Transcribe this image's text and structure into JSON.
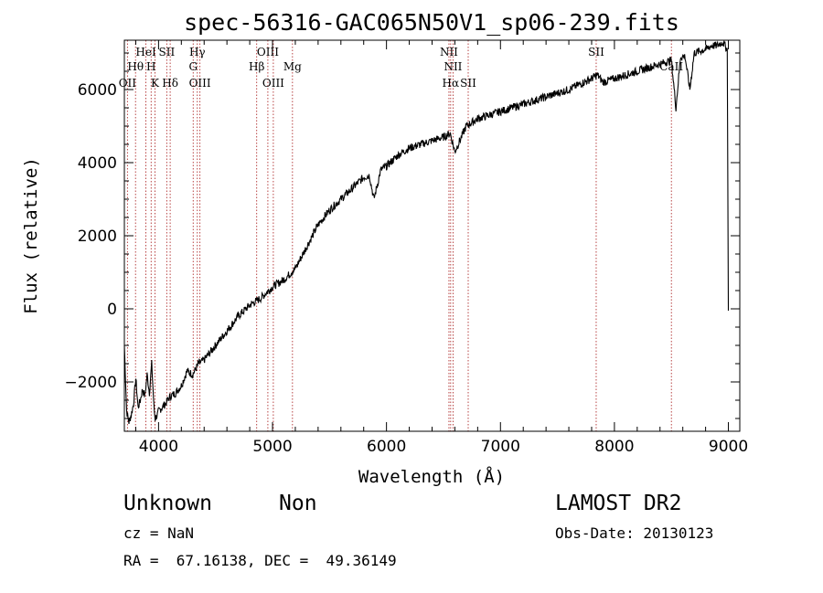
{
  "chart_data": {
    "type": "line",
    "title": "spec-56316-GAC065N50V1_sp06-239.fits",
    "xlabel": "Wavelength (Å)",
    "ylabel": "Flux (relative)",
    "xlim": [
      3700,
      9100
    ],
    "ylim": [
      -3350,
      7350
    ],
    "xticks": [
      4000,
      5000,
      6000,
      7000,
      8000,
      9000
    ],
    "yticks": [
      -2000,
      0,
      2000,
      4000,
      6000
    ],
    "grid": false,
    "series": [
      {
        "x": [
          3700,
          3720,
          3740,
          3760,
          3780,
          3800,
          3820,
          3840,
          3860,
          3880,
          3900,
          3920,
          3940,
          3960,
          3970,
          3990,
          4000,
          4030,
          4060,
          4100,
          4150,
          4200,
          4250,
          4300,
          4350,
          4400,
          4500,
          4600,
          4700,
          4800,
          4900,
          5000,
          5100,
          5200,
          5300,
          5400,
          5500,
          5600,
          5700,
          5800,
          5850,
          5890,
          5950,
          6000,
          6100,
          6200,
          6300,
          6400,
          6500,
          6560,
          6600,
          6700,
          6800,
          6900,
          7000,
          7200,
          7400,
          7600,
          7800,
          7850,
          7900,
          8000,
          8100,
          8200,
          8300,
          8400,
          8500,
          8540,
          8580,
          8620,
          8662,
          8700,
          8800,
          8850,
          8900,
          8950,
          8990,
          9000
        ],
        "y": [
          -1000,
          -2800,
          -3100,
          -2900,
          -2600,
          -1900,
          -2700,
          -2500,
          -2200,
          -2400,
          -1800,
          -2300,
          -1500,
          -2700,
          -3000,
          -2900,
          -2800,
          -2700,
          -2600,
          -2400,
          -2300,
          -2100,
          -1700,
          -1800,
          -1500,
          -1400,
          -1000,
          -600,
          -200,
          100,
          300,
          600,
          800,
          1100,
          1700,
          2300,
          2700,
          3000,
          3300,
          3600,
          3650,
          3000,
          3800,
          3900,
          4200,
          4400,
          4500,
          4600,
          4700,
          4800,
          4300,
          5000,
          5200,
          5300,
          5400,
          5600,
          5800,
          6000,
          6300,
          6400,
          6200,
          6300,
          6400,
          6500,
          6600,
          6700,
          6800,
          5500,
          6900,
          6900,
          6000,
          7000,
          7100,
          7200,
          7200,
          7300,
          7100,
          -50
        ]
      }
    ],
    "lines": [
      {
        "name": "Hθ",
        "w": 3798,
        "row": 2
      },
      {
        "name": "OII",
        "w": 3727,
        "row": 3
      },
      {
        "name": "HeI",
        "w": 3889,
        "row": 1
      },
      {
        "name": "H",
        "w": 3935,
        "row": 2
      },
      {
        "name": "K",
        "w": 3969,
        "row": 3
      },
      {
        "name": "SII",
        "w": 4072,
        "row": 1
      },
      {
        "name": "Hδ",
        "w": 4102,
        "row": 3
      },
      {
        "name": "Hγ",
        "w": 4340,
        "row": 1
      },
      {
        "name": "G",
        "w": 4304,
        "row": 2
      },
      {
        "name": "OIII",
        "w": 4363,
        "row": 3
      },
      {
        "name": "OIII",
        "w": 4959,
        "row": 1
      },
      {
        "name": "Hβ",
        "w": 4861,
        "row": 2
      },
      {
        "name": "OIII",
        "w": 5007,
        "row": 3
      },
      {
        "name": "Mg",
        "w": 5175,
        "row": 2
      },
      {
        "name": "NII",
        "w": 6548,
        "row": 1
      },
      {
        "name": "NII",
        "w": 6584,
        "row": 2
      },
      {
        "name": "Hα",
        "w": 6563,
        "row": 3
      },
      {
        "name": "SII",
        "w": 6717,
        "row": 3
      },
      {
        "name": "SII",
        "w": 7840,
        "row": 1
      },
      {
        "name": "CaII",
        "w": 8500,
        "row": 2
      }
    ]
  },
  "info": {
    "class": "Unknown",
    "subclass": "Non",
    "survey": "LAMOST DR2",
    "cz": "cz = NaN",
    "obsdate": "Obs-Date: 20130123",
    "radec": "RA =  67.16138, DEC =  49.36149"
  },
  "colors": {
    "line_marker": "#b03030",
    "spectrum": "#000000"
  }
}
